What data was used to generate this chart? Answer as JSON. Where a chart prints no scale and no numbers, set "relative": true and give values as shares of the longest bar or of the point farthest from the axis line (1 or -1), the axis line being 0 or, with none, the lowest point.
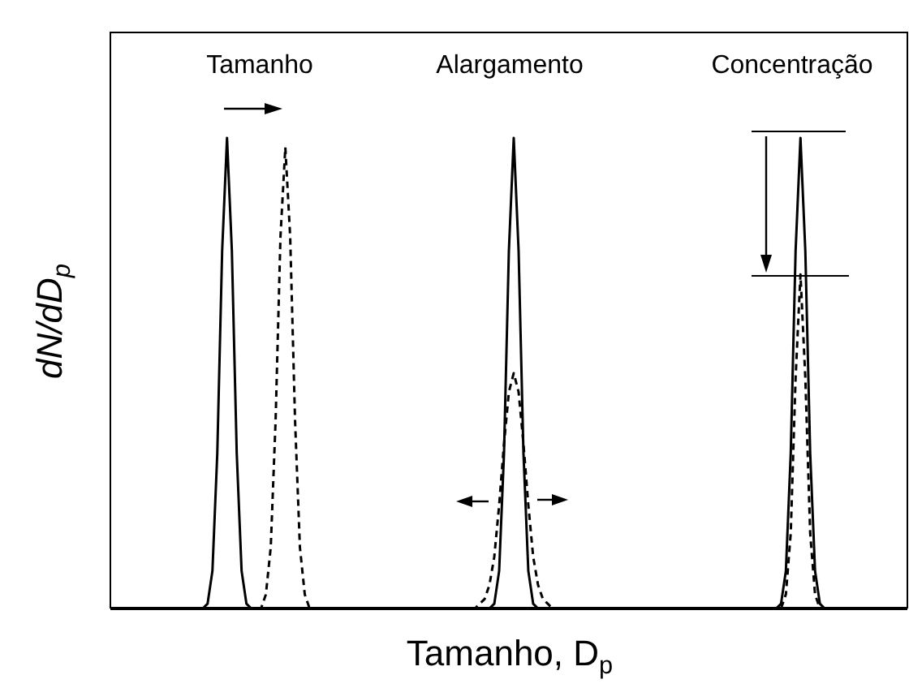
{
  "chart_data": {
    "type": "line",
    "relative": true,
    "xlabel": "Tamanho, D$_{p}$",
    "ylabel": "dN/dD$_{p}$",
    "marker": "none",
    "annotations": [
      "Tamanho",
      "Alargamento",
      "Concentração"
    ],
    "categories": [
      null,
      null,
      null,
      null,
      null,
      null,
      null,
      null,
      null,
      null,
      null,
      null,
      null,
      null,
      null,
      null,
      null,
      null,
      null,
      null,
      null,
      null,
      null,
      null,
      null,
      null,
      null,
      null,
      null,
      null,
      null,
      null,
      null,
      null,
      null,
      null,
      null,
      null,
      null,
      null,
      null,
      null,
      null,
      null,
      null,
      null,
      null,
      null,
      null,
      null,
      null,
      null,
      null,
      null,
      null,
      null,
      null,
      null,
      null,
      null,
      null,
      null,
      null,
      null,
      null,
      null,
      null,
      null,
      null,
      null,
      null,
      null,
      null,
      null,
      null,
      null,
      null,
      null,
      null,
      null,
      null,
      null,
      null,
      null,
      null,
      null,
      null,
      null,
      null,
      null,
      null,
      null,
      null,
      null,
      null,
      null,
      null,
      null,
      null,
      null,
      null,
      null,
      null,
      null,
      null,
      null,
      null,
      null,
      null,
      null,
      null,
      null,
      null,
      null,
      null,
      null,
      null,
      null,
      null,
      null,
      null,
      null,
      null,
      null,
      null,
      null,
      null,
      null,
      null,
      null,
      null,
      null,
      null,
      null,
      null,
      null,
      null,
      null,
      null,
      null,
      null,
      null,
      null,
      null,
      null,
      null,
      null,
      null,
      null,
      null,
      null,
      null,
      null,
      null,
      null,
      null,
      null,
      null,
      null,
      null,
      null,
      null,
      null,
      null,
      null
    ],
    "series": [
      {
        "color": "#000000",
        "line_style": "solid",
        "values": [
          0,
          0,
          0,
          0,
          0,
          0,
          0,
          0,
          0,
          0,
          0,
          0,
          0,
          0,
          0,
          0,
          0,
          0,
          0,
          0,
          0.01,
          0.08,
          0.33,
          0.76,
          1,
          0.76,
          0.33,
          0.08,
          0.01,
          0,
          0,
          0,
          0,
          0,
          0,
          0,
          0,
          0,
          0,
          0,
          0,
          0,
          0,
          0,
          0,
          0,
          0,
          0,
          0,
          0,
          0,
          0,
          0,
          0,
          0,
          0,
          0,
          0,
          0,
          0,
          0,
          0,
          0,
          0,
          0,
          0,
          0,
          0,
          0,
          0,
          0,
          0,
          0,
          0,
          0,
          0,
          0,
          0,
          0,
          0.01,
          0.08,
          0.33,
          0.76,
          1,
          0.76,
          0.33,
          0.08,
          0.01,
          0,
          0,
          0,
          0,
          0,
          0,
          0,
          0,
          0,
          0,
          0,
          0,
          0,
          0,
          0,
          0,
          0,
          0,
          0,
          0,
          0,
          0,
          0,
          0,
          0,
          0,
          0,
          0,
          0,
          0,
          0,
          0,
          0,
          0,
          0,
          0,
          0,
          0,
          0,
          0,
          0,
          0,
          0,
          0,
          0,
          0,
          0,
          0,
          0,
          0,
          0.01,
          0.08,
          0.33,
          0.76,
          1,
          0.76,
          0.33,
          0.08,
          0.01,
          0,
          0,
          0,
          0,
          0,
          0,
          0,
          0,
          0,
          0,
          0,
          0,
          0,
          0,
          0,
          0,
          0,
          0
        ]
      },
      {
        "color": "#000000",
        "line_style": "dashed",
        "values": [
          0,
          0,
          0,
          0,
          0,
          0,
          0,
          0,
          0,
          0,
          0,
          0,
          0,
          0,
          0,
          0,
          0,
          0,
          0,
          0,
          0,
          0,
          0,
          0,
          0,
          0,
          0,
          0,
          0,
          0,
          0,
          0,
          0.03,
          0.13,
          0.4,
          0.79,
          0.98,
          0.79,
          0.4,
          0.13,
          0.03,
          0,
          0,
          0,
          0,
          0,
          0,
          0,
          0,
          0,
          0,
          0,
          0,
          0,
          0,
          0,
          0,
          0,
          0,
          0,
          0,
          0,
          0,
          0,
          0,
          0,
          0,
          0,
          0,
          0,
          0,
          0,
          0,
          0,
          0,
          0,
          0.01,
          0.02,
          0.05,
          0.11,
          0.22,
          0.35,
          0.46,
          0.5,
          0.46,
          0.35,
          0.22,
          0.11,
          0.05,
          0.02,
          0.01,
          0,
          0,
          0,
          0,
          0,
          0,
          0,
          0,
          0,
          0,
          0,
          0,
          0,
          0,
          0,
          0,
          0,
          0,
          0,
          0,
          0,
          0,
          0,
          0,
          0,
          0,
          0,
          0,
          0,
          0,
          0,
          0,
          0,
          0,
          0,
          0,
          0,
          0,
          0,
          0,
          0,
          0,
          0,
          0,
          0,
          0,
          0,
          0,
          0.03,
          0.16,
          0.49,
          0.71,
          0.49,
          0.16,
          0.03,
          0,
          0,
          0,
          0,
          0,
          0,
          0,
          0,
          0,
          0,
          0,
          0,
          0,
          0,
          0,
          0,
          0,
          0,
          0
        ]
      }
    ]
  }
}
